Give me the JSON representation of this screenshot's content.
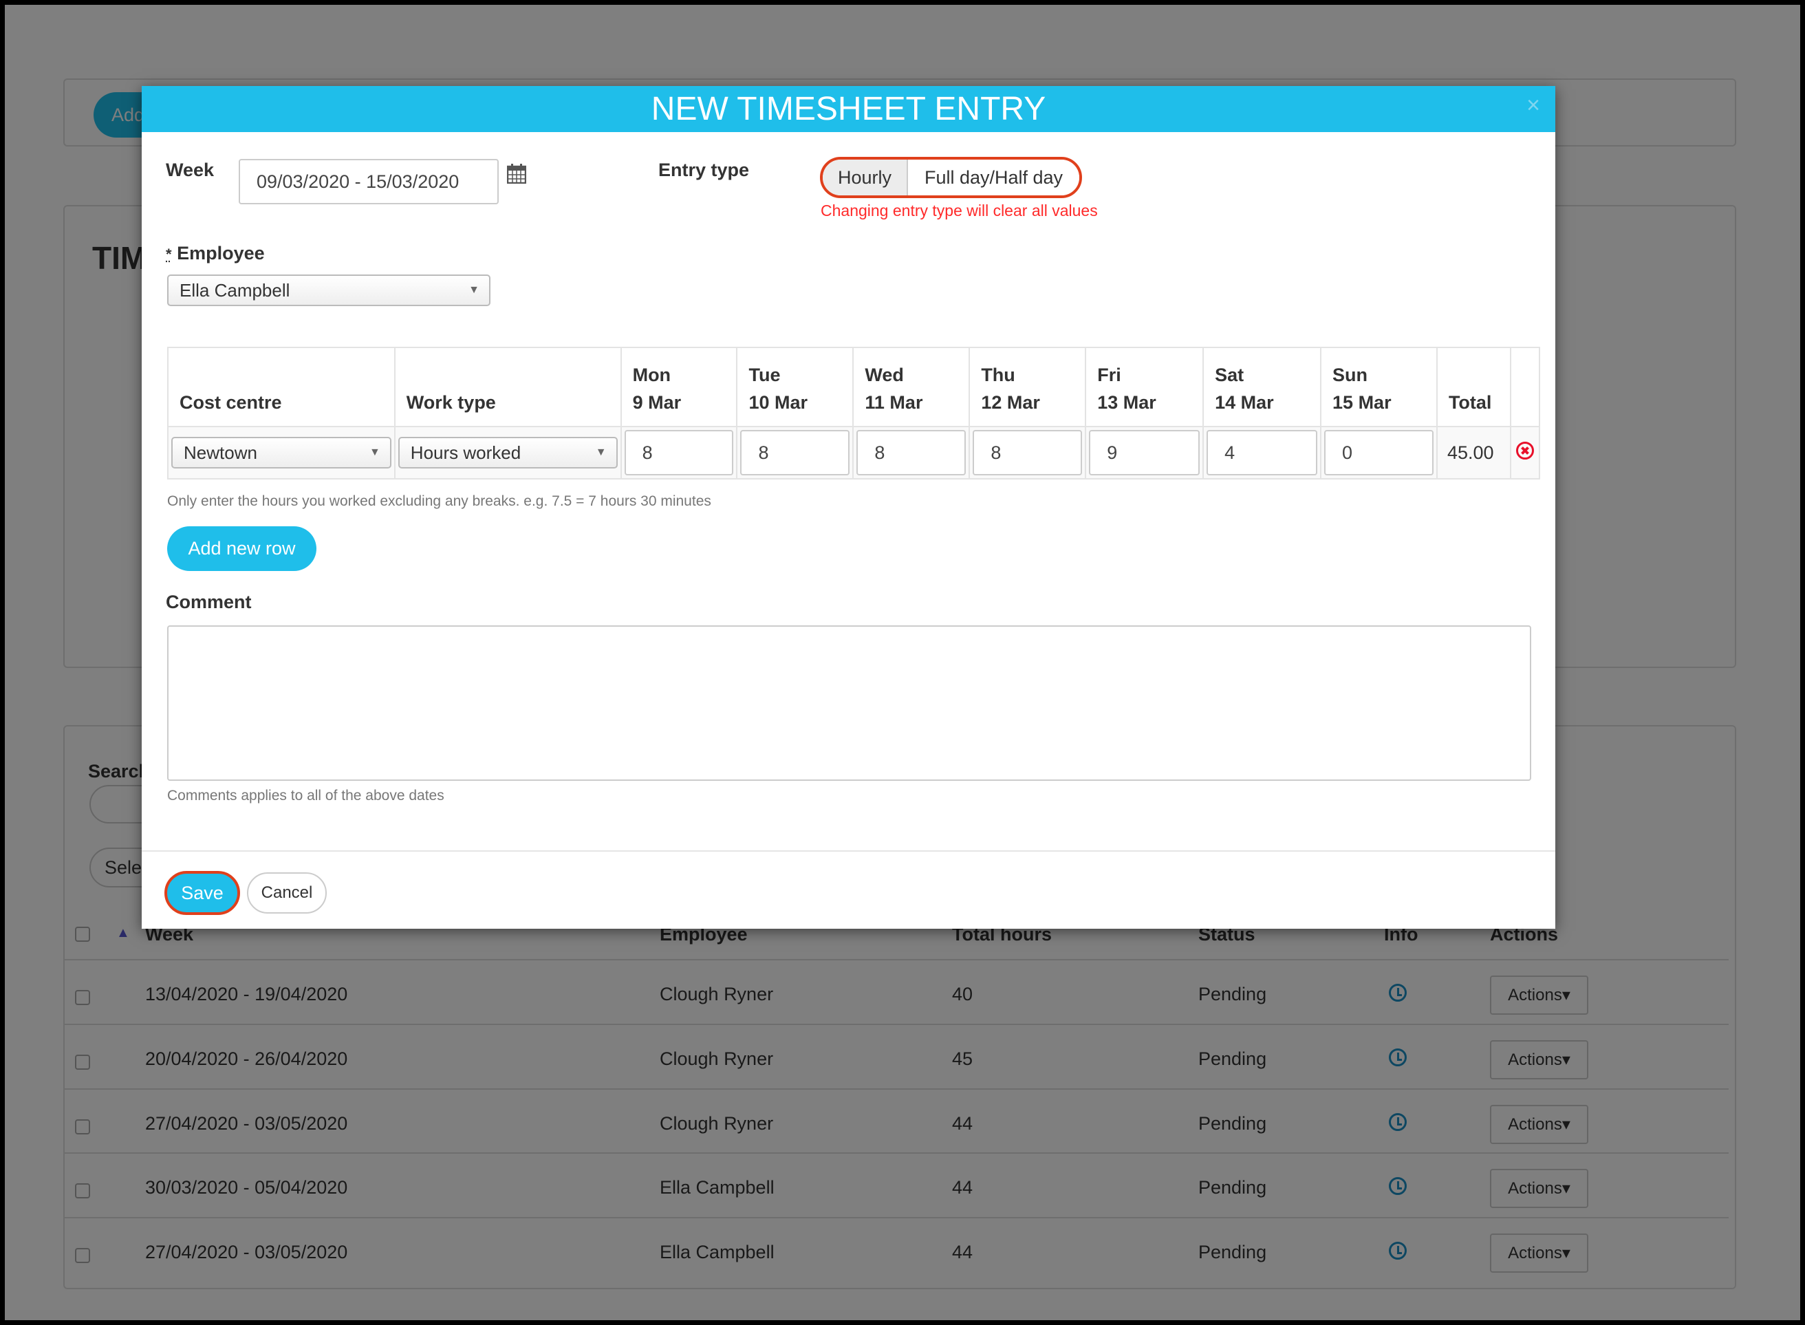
{
  "background": {
    "add_button_label": "Add",
    "page_title_partial": "TIM",
    "search_label_partial": "Search",
    "select_partial": "Selec",
    "table": {
      "columns": [
        "Week",
        "Employee",
        "Total hours",
        "Status",
        "Info",
        "Actions"
      ],
      "rows": [
        {
          "week": "13/04/2020 - 19/04/2020",
          "employee": "Clough Ryner",
          "total_hours": "40",
          "status": "Pending",
          "actions": "Actions"
        },
        {
          "week": "20/04/2020 - 26/04/2020",
          "employee": "Clough Ryner",
          "total_hours": "45",
          "status": "Pending",
          "actions": "Actions"
        },
        {
          "week": "27/04/2020 - 03/05/2020",
          "employee": "Clough Ryner",
          "total_hours": "44",
          "status": "Pending",
          "actions": "Actions"
        },
        {
          "week": "30/03/2020 - 05/04/2020",
          "employee": "Ella Campbell",
          "total_hours": "44",
          "status": "Pending",
          "actions": "Actions"
        },
        {
          "week": "27/04/2020 - 03/05/2020",
          "employee": "Ella Campbell",
          "total_hours": "44",
          "status": "Pending",
          "actions": "Actions"
        }
      ]
    }
  },
  "modal": {
    "title": "NEW TIMESHEET ENTRY",
    "close": "×",
    "week_label": "Week",
    "week_value": "09/03/2020 - 15/03/2020",
    "entry_type_label": "Entry type",
    "entry_types": [
      "Hourly",
      "Full day/Half day"
    ],
    "entry_type_selected": "Hourly",
    "entry_type_warning": "Changing entry type will clear all values",
    "employee_required_mark": "*",
    "employee_label": "Employee",
    "employee_value": "Ella Campbell",
    "grid": {
      "headers": {
        "cost_centre": "Cost centre",
        "work_type": "Work type",
        "total": "Total"
      },
      "days": [
        {
          "day": "Mon",
          "date": "9 Mar"
        },
        {
          "day": "Tue",
          "date": "10 Mar"
        },
        {
          "day": "Wed",
          "date": "11 Mar"
        },
        {
          "day": "Thu",
          "date": "12 Mar"
        },
        {
          "day": "Fri",
          "date": "13 Mar"
        },
        {
          "day": "Sat",
          "date": "14 Mar"
        },
        {
          "day": "Sun",
          "date": "15 Mar"
        }
      ],
      "rows": [
        {
          "cost_centre": "Newtown",
          "work_type": "Hours worked",
          "hours": [
            "8",
            "8",
            "8",
            "8",
            "9",
            "4",
            "0"
          ],
          "total": "45.00"
        }
      ]
    },
    "hours_hint": "Only enter the hours you worked excluding any breaks. e.g. 7.5 = 7 hours 30 minutes",
    "add_row_label": "Add new row",
    "comment_label": "Comment",
    "comment_value": "",
    "comment_hint": "Comments applies to all of the above dates",
    "save_label": "Save",
    "cancel_label": "Cancel"
  },
  "colors": {
    "accent": "#1fbeea",
    "highlight": "#e0401c",
    "error": "#ff2a2a",
    "delete_icon": "#e8102a"
  }
}
